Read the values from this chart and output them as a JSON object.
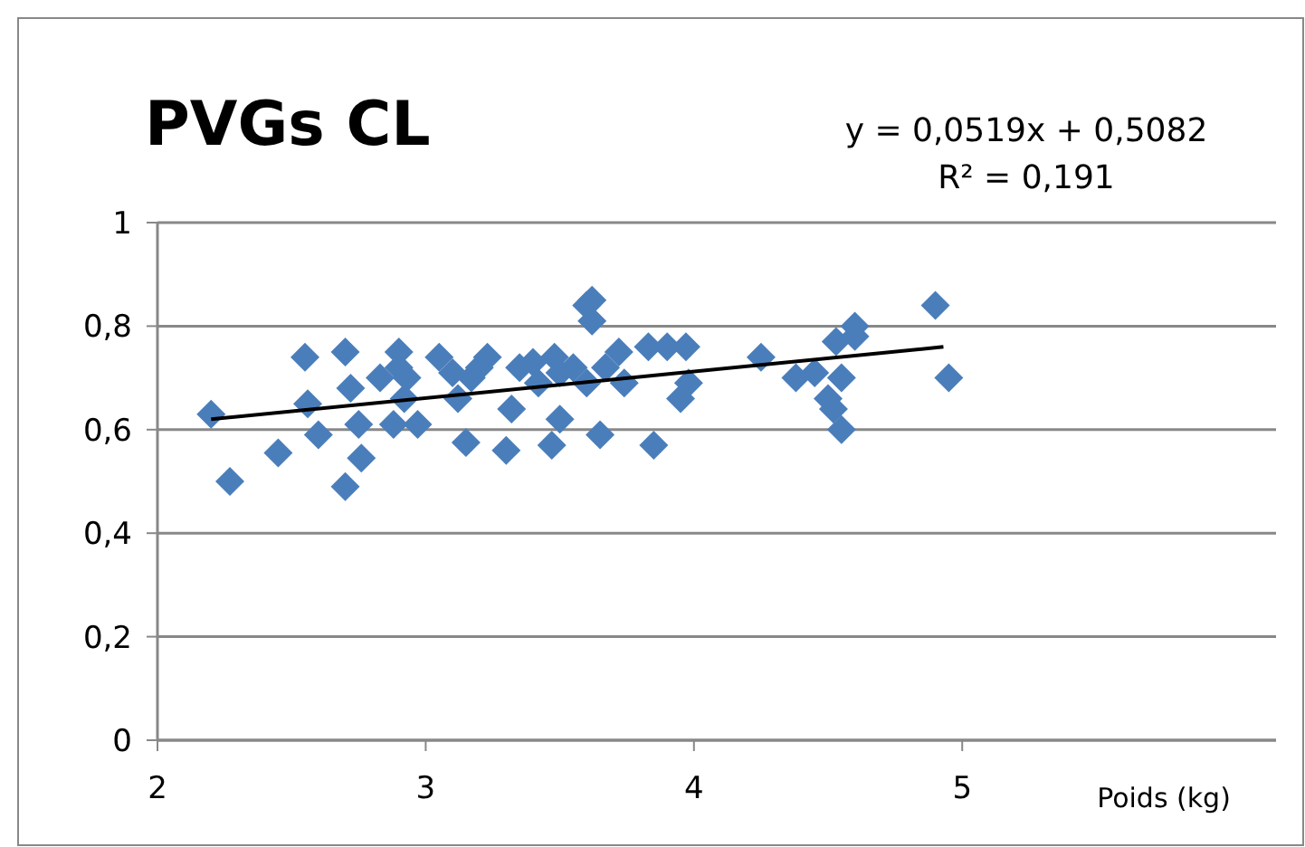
{
  "chart_data": {
    "type": "scatter",
    "title": "PVGs CL",
    "xlabel": "Poids (kg)",
    "annotations": [
      "y = 0,0519x + 0,5082",
      "R² = 0,191"
    ],
    "xlim": [
      2,
      6.17
    ],
    "xticks": [
      2,
      3,
      4,
      5
    ],
    "ylim": [
      0,
      1
    ],
    "yticks": [
      0,
      {
        "value": 0.2,
        "label": "0,2"
      },
      {
        "value": 0.4,
        "label": "0,4"
      },
      {
        "value": 0.6,
        "label": "0,6"
      },
      {
        "value": 0.8,
        "label": "0,8"
      },
      1
    ],
    "grid": "y",
    "series": [
      {
        "marker": "diamond",
        "color": "#4a7ebb",
        "x": [
          2.2,
          2.27,
          2.45,
          2.55,
          2.56,
          2.6,
          2.7,
          2.7,
          2.72,
          2.75,
          2.76,
          2.83,
          2.88,
          2.9,
          2.9,
          2.92,
          2.93,
          2.97,
          3.05,
          3.1,
          3.12,
          3.15,
          3.17,
          3.2,
          3.23,
          3.3,
          3.32,
          3.35,
          3.4,
          3.42,
          3.47,
          3.48,
          3.5,
          3.5,
          3.55,
          3.6,
          3.62,
          3.62,
          3.6,
          3.65,
          3.67,
          3.72,
          3.74,
          3.83,
          3.85,
          3.9,
          3.95,
          3.97,
          3.98,
          4.25,
          4.38,
          4.45,
          4.5,
          4.52,
          4.53,
          4.55,
          4.55,
          4.6,
          4.6,
          4.9,
          4.95
        ],
        "values": [
          0.63,
          0.5,
          0.555,
          0.74,
          0.65,
          0.59,
          0.49,
          0.75,
          0.68,
          0.61,
          0.545,
          0.7,
          0.61,
          0.75,
          0.72,
          0.66,
          0.7,
          0.61,
          0.74,
          0.71,
          0.66,
          0.575,
          0.7,
          0.72,
          0.74,
          0.56,
          0.64,
          0.72,
          0.73,
          0.69,
          0.57,
          0.74,
          0.62,
          0.71,
          0.72,
          0.84,
          0.85,
          0.81,
          0.69,
          0.59,
          0.72,
          0.75,
          0.69,
          0.76,
          0.57,
          0.76,
          0.66,
          0.76,
          0.69,
          0.74,
          0.7,
          0.71,
          0.66,
          0.64,
          0.77,
          0.6,
          0.7,
          0.78,
          0.8,
          0.84,
          0.7
        ]
      },
      {
        "type": "line",
        "color": "#000000",
        "x": [
          2.2,
          4.93
        ],
        "values": [
          0.62,
          0.76
        ]
      }
    ]
  }
}
